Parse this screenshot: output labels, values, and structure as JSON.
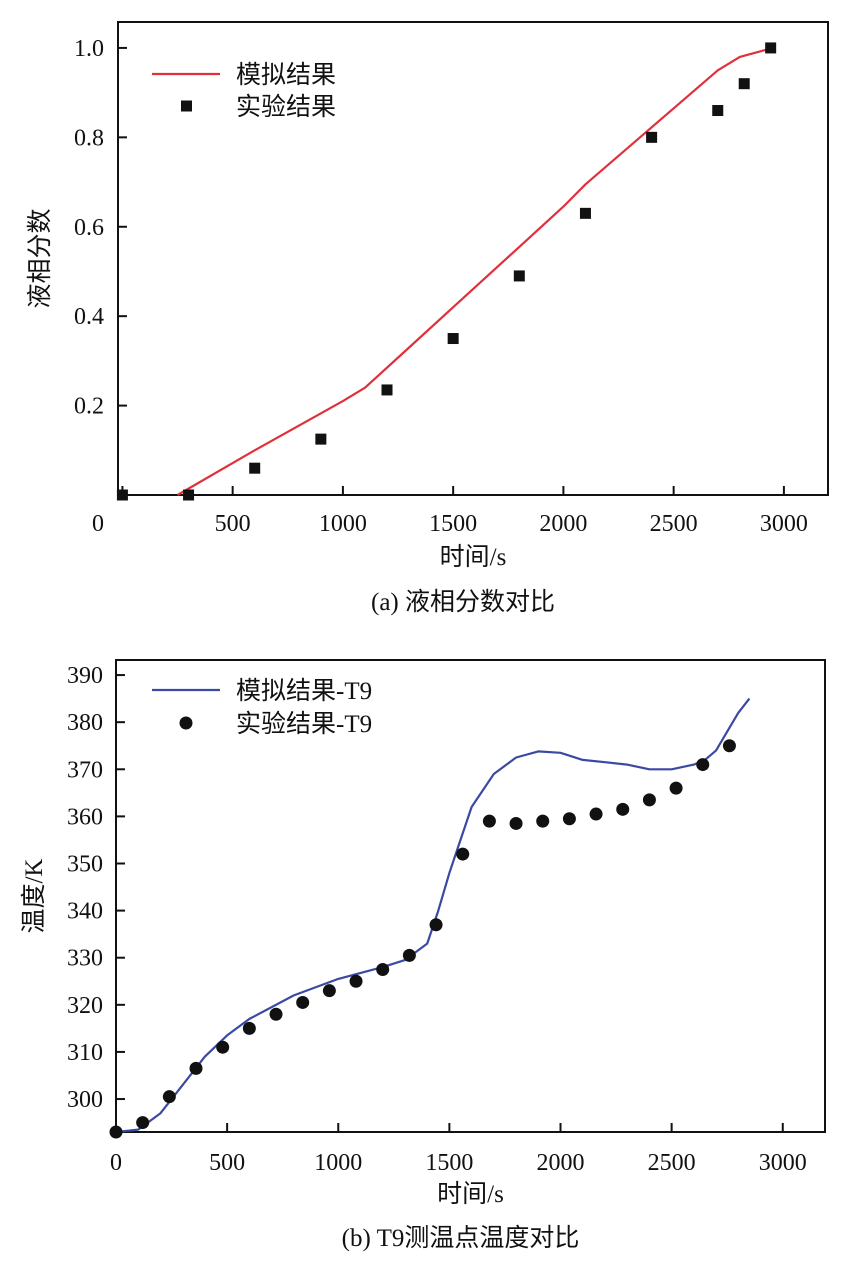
{
  "chart_data": [
    {
      "type": "line",
      "caption": "(a) 液相分数对比",
      "xlabel": "时间/s",
      "ylabel": "液相分数",
      "xlim": [
        -20,
        3200
      ],
      "ylim": [
        0,
        1.058
      ],
      "xticks": [
        0,
        500,
        1000,
        1500,
        2000,
        2500,
        3000
      ],
      "yticks": [
        0.2,
        0.4,
        0.6,
        0.8,
        1.0
      ],
      "ytick_labels": [
        "0.2",
        "0.4",
        "0.6",
        "0.8",
        "1.0"
      ],
      "legend_position": "top-left",
      "colors": {
        "sim": "#e0303c",
        "exp": "#111111"
      },
      "series": [
        {
          "name": "模拟结果",
          "kind": "line",
          "x": [
            250,
            600,
            1000,
            1100,
            1300,
            1500,
            1800,
            2000,
            2100,
            2300,
            2500,
            2700,
            2800,
            2950
          ],
          "y": [
            0,
            0.1,
            0.21,
            0.24,
            0.33,
            0.42,
            0.555,
            0.645,
            0.695,
            0.78,
            0.865,
            0.95,
            0.98,
            1.0
          ]
        },
        {
          "name": "实验结果",
          "kind": "square",
          "x": [
            0,
            300,
            600,
            900,
            1200,
            1500,
            1800,
            2100,
            2400,
            2700,
            2820,
            2940
          ],
          "y": [
            0,
            0,
            0.06,
            0.125,
            0.235,
            0.35,
            0.49,
            0.63,
            0.8,
            0.86,
            0.92,
            1.0
          ]
        }
      ]
    },
    {
      "type": "line",
      "caption": "(b) T9测温点温度对比",
      "xlabel": "时间/s",
      "ylabel": "温度/K",
      "xlim": [
        0,
        3190
      ],
      "ylim": [
        293,
        393.2
      ],
      "xticks": [
        0,
        500,
        1000,
        1500,
        2000,
        2500,
        3000
      ],
      "yticks": [
        300,
        310,
        320,
        330,
        340,
        350,
        360,
        370,
        380,
        390
      ],
      "legend_position": "top-left",
      "colors": {
        "sim": "#3a4aa3",
        "exp": "#111111"
      },
      "series": [
        {
          "name": "模拟结果-T9",
          "kind": "line",
          "x": [
            0,
            100,
            200,
            300,
            400,
            500,
            600,
            800,
            1000,
            1200,
            1300,
            1400,
            1450,
            1500,
            1550,
            1600,
            1700,
            1800,
            1900,
            2000,
            2100,
            2200,
            2300,
            2400,
            2500,
            2600,
            2650,
            2700,
            2750,
            2800,
            2850
          ],
          "y": [
            293,
            293.5,
            297,
            303,
            309,
            313.5,
            317,
            322,
            325.5,
            328,
            329.5,
            333,
            340,
            348,
            355,
            362,
            369,
            372.5,
            373.8,
            373.5,
            372,
            371.5,
            371,
            370,
            370,
            371,
            372,
            374,
            378,
            382,
            385
          ]
        },
        {
          "name": "实验结果-T9",
          "kind": "circle",
          "x": [
            0,
            120,
            240,
            360,
            480,
            600,
            720,
            840,
            960,
            1080,
            1200,
            1320,
            1440,
            1560,
            1680,
            1800,
            1920,
            2040,
            2160,
            2280,
            2400,
            2520,
            2640,
            2760
          ],
          "y": [
            293,
            295,
            300.5,
            306.5,
            311,
            315,
            318,
            320.5,
            323,
            325,
            327.5,
            330.5,
            337,
            352,
            359,
            358.5,
            359,
            359.5,
            360.5,
            361.5,
            363.5,
            366,
            371,
            375
          ]
        }
      ]
    }
  ]
}
